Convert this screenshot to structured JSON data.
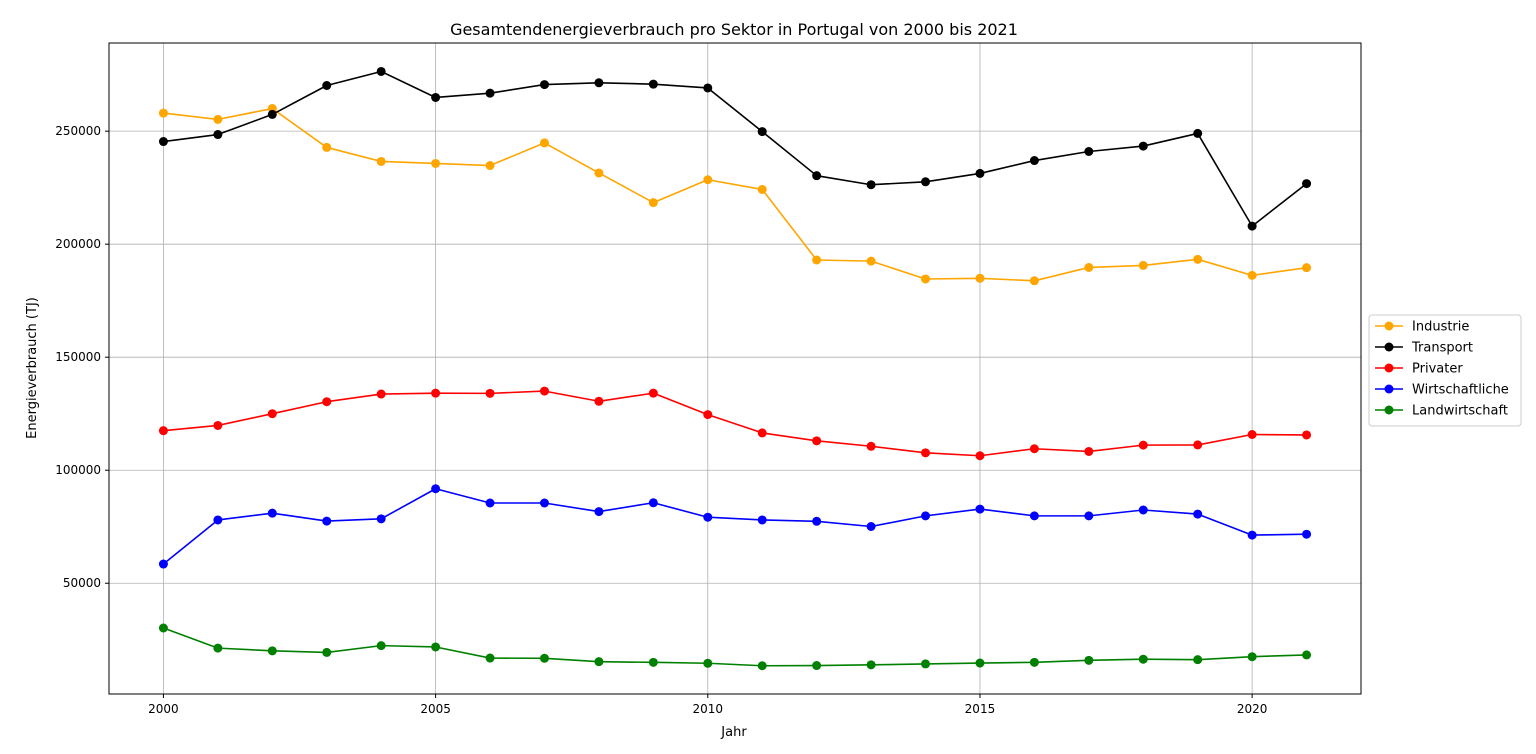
{
  "chart_data": {
    "type": "line",
    "title": "Gesamtendenergieverbrauch pro Sektor in Portugal von 2000 bis 2021",
    "xlabel": "Jahr",
    "ylabel": "Energieverbrauch (TJ)",
    "x": [
      2000,
      2001,
      2002,
      2003,
      2004,
      2005,
      2006,
      2007,
      2008,
      2009,
      2010,
      2011,
      2012,
      2013,
      2014,
      2015,
      2016,
      2017,
      2018,
      2019,
      2020,
      2021
    ],
    "xlim": [
      1999,
      2022
    ],
    "ylim": [
      1000,
      289000
    ],
    "xticks": [
      2000,
      2005,
      2010,
      2015,
      2020
    ],
    "yticks": [
      50000,
      100000,
      150000,
      200000,
      250000
    ],
    "grid": true,
    "legend_position": "right",
    "series": [
      {
        "name": "Industrie",
        "color": "#ffa500",
        "values": [
          258000,
          255200,
          260000,
          242800,
          236600,
          235700,
          234800,
          244800,
          231500,
          218400,
          228500,
          224200,
          193000,
          192500,
          184600,
          184900,
          183800,
          189700,
          190600,
          193300,
          186200,
          189600
        ]
      },
      {
        "name": "Transport",
        "color": "#000000",
        "values": [
          245400,
          248500,
          257400,
          270200,
          276400,
          264900,
          266800,
          270600,
          271400,
          270800,
          269100,
          249800,
          230300,
          226300,
          227600,
          231300,
          237000,
          241000,
          243400,
          249000,
          208000,
          226800
        ]
      },
      {
        "name": "Privater",
        "color": "#ff0000",
        "values": [
          117500,
          119800,
          125000,
          130300,
          133700,
          134100,
          134000,
          135000,
          130500,
          134100,
          124600,
          116500,
          113000,
          110600,
          107700,
          106400,
          109500,
          108300,
          111100,
          111200,
          115800,
          115600
        ]
      },
      {
        "name": "Wirtschaftliche",
        "color": "#0000ff",
        "values": [
          58500,
          78000,
          81000,
          77500,
          78500,
          91800,
          85500,
          85500,
          81700,
          85600,
          79200,
          78000,
          77400,
          75100,
          79800,
          82800,
          79800,
          79800,
          82400,
          80600,
          71300,
          71700
        ]
      },
      {
        "name": "Landwirtschaft",
        "color": "#008000",
        "values": [
          30200,
          21300,
          20100,
          19400,
          22400,
          21800,
          16900,
          16800,
          15300,
          15000,
          14600,
          13500,
          13600,
          13900,
          14300,
          14700,
          15000,
          15900,
          16400,
          16200,
          17500,
          18300
        ]
      }
    ]
  }
}
